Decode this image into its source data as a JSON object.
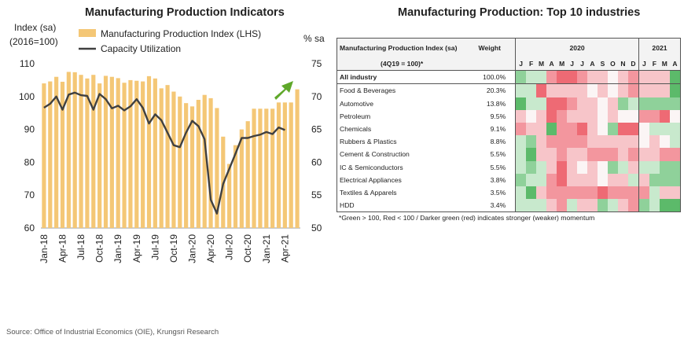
{
  "left_title": "Manufacturing Production Indicators",
  "right_title": "Manufacturing Production: Top 10 industries",
  "left_axis_label_line1": "Index (sa)",
  "left_axis_label_line2": "(2016=100)",
  "right_axis_label": "% sa",
  "source": "Source: Office of Industrial Economics (OIE), Krungsri Research",
  "chart_data": [
    {
      "type": "bar",
      "title": "Manufacturing Production Indicators",
      "ylabel": "Index (sa) (2016=100)",
      "y2label": "% sa",
      "ylim": [
        60,
        110
      ],
      "y2lim": [
        50,
        75
      ],
      "yticks": [
        60,
        70,
        80,
        90,
        100,
        110
      ],
      "y2ticks": [
        50,
        55,
        60,
        65,
        70,
        75
      ],
      "xtick_labels": [
        "Jan-18",
        "Apr-18",
        "Jul-18",
        "Oct-18",
        "Jan-19",
        "Apr-19",
        "Jul-19",
        "Oct-19",
        "Jan-20",
        "Apr-20",
        "Jul-20",
        "Oct-20",
        "Jan-21",
        "Apr-21"
      ],
      "xtick_index": [
        0,
        3,
        6,
        9,
        12,
        15,
        18,
        21,
        24,
        27,
        30,
        33,
        36,
        39
      ],
      "legend": [
        "Manufacturing Production Index (LHS)",
        "Capacity Utilization"
      ],
      "legend_position": "top-left",
      "colors": {
        "bars": "#f4c776",
        "line": "#404040",
        "arrow": "#5fa82a"
      },
      "series": [
        {
          "name": "Manufacturing Production Index (LHS)",
          "type": "bar",
          "values": [
            104.0,
            104.6,
            106.0,
            104.5,
            107.5,
            107.4,
            106.6,
            105.5,
            106.6,
            104.0,
            106.3,
            106.0,
            105.6,
            104.2,
            105.0,
            104.8,
            104.6,
            106.2,
            105.5,
            102.5,
            103.5,
            101.5,
            100.0,
            98.0,
            97.0,
            99.0,
            100.5,
            99.5,
            96.5,
            87.8,
            79.5,
            85.2,
            90.0,
            92.5,
            96.3,
            96.3,
            96.3,
            96.3,
            98.2,
            98.2,
            98.2,
            102.2
          ]
        },
        {
          "name": "Capacity Utilization",
          "type": "line",
          "axis": "right",
          "values": [
            68.3,
            68.9,
            70.0,
            68.0,
            70.3,
            70.6,
            70.2,
            70.1,
            68.0,
            70.4,
            69.6,
            68.2,
            68.6,
            67.9,
            68.5,
            69.6,
            68.3,
            65.9,
            67.3,
            66.4,
            64.5,
            62.6,
            62.3,
            64.5,
            66.3,
            65.5,
            63.5,
            54.3,
            52.2,
            56.7,
            59.0,
            61.3,
            63.7,
            63.7,
            64.0,
            64.2,
            64.6,
            64.3,
            65.3,
            64.9
          ]
        }
      ]
    },
    {
      "type": "heatmap",
      "title": "Manufacturing Production: Top 10 industries",
      "header_col1": "Manufacturing Production Index (sa)",
      "header_col1_sub": "(4Q19 = 100)*",
      "header_weight": "Weight",
      "years": [
        {
          "label": "2020",
          "span": 12
        },
        {
          "label": "2021",
          "span": 4
        }
      ],
      "months": [
        "J",
        "F",
        "M",
        "A",
        "M",
        "J",
        "J",
        "A",
        "S",
        "O",
        "N",
        "D",
        "J",
        "F",
        "M",
        "A"
      ],
      "rows": [
        {
          "name": "All industry",
          "weight": "100.0%",
          "bold": true,
          "cells": [
            2,
            1,
            1,
            -2,
            -3,
            -3,
            -2,
            -1,
            -1,
            0,
            -1,
            -2,
            -1,
            -1,
            -1,
            3
          ]
        },
        {
          "name": "Food & Beverages",
          "weight": "20.3%",
          "cells": [
            1,
            1,
            -3,
            -1,
            -1,
            -1,
            -1,
            0,
            -1,
            0,
            -1,
            -2,
            -1,
            -1,
            -1,
            3
          ]
        },
        {
          "name": "Automotive",
          "weight": "13.8%",
          "cells": [
            3,
            1,
            1,
            -3,
            -3,
            -2,
            -1,
            -1,
            0,
            -1,
            2,
            1,
            2,
            2,
            2,
            2
          ]
        },
        {
          "name": "Petroleum",
          "weight": "9.5%",
          "cells": [
            -1,
            0,
            -1,
            -3,
            -2,
            -1,
            -1,
            -1,
            0,
            -1,
            0,
            0,
            -2,
            -2,
            -3,
            0
          ]
        },
        {
          "name": "Chemicals",
          "weight": "9.1%",
          "cells": [
            -2,
            -1,
            -1,
            3,
            -2,
            -2,
            -3,
            -1,
            0,
            2,
            -3,
            -3,
            0,
            1,
            1,
            1
          ]
        },
        {
          "name": "Rubbers & Plastics",
          "weight": "8.8%",
          "cells": [
            1,
            2,
            -1,
            -2,
            -2,
            -2,
            -2,
            -1,
            -1,
            -1,
            -1,
            -1,
            0,
            -1,
            0,
            1
          ]
        },
        {
          "name": "Cement & Construction",
          "weight": "5.5%",
          "cells": [
            1,
            3,
            -1,
            -1,
            -2,
            -1,
            -1,
            -2,
            -2,
            -2,
            -1,
            -2,
            -1,
            -1,
            -2,
            -2
          ]
        },
        {
          "name": "IC & Semiconductors",
          "weight": "5.5%",
          "cells": [
            1,
            2,
            1,
            -1,
            -3,
            -1,
            0,
            -1,
            0,
            2,
            1,
            -1,
            1,
            1,
            2,
            2
          ]
        },
        {
          "name": "Electrical Appliances",
          "weight": "3.8%",
          "cells": [
            2,
            1,
            1,
            -2,
            -3,
            -1,
            -1,
            -1,
            0,
            -1,
            -1,
            1,
            -1,
            2,
            2,
            2
          ]
        },
        {
          "name": "Textiles & Apparels",
          "weight": "3.5%",
          "cells": [
            1,
            3,
            -1,
            -2,
            -2,
            -2,
            -2,
            -2,
            -3,
            -2,
            -2,
            -2,
            -2,
            1,
            -1,
            -1
          ]
        },
        {
          "name": "HDD",
          "weight": "3.4%",
          "cells": [
            1,
            1,
            1,
            -1,
            -2,
            1,
            -1,
            -1,
            2,
            1,
            -1,
            -2,
            2,
            1,
            3,
            3
          ]
        }
      ],
      "note": "*Green > 100, Red < 100 / Darker green (red) indicates stronger (weaker) momentum",
      "colors": {
        "green3": "#5cba6a",
        "green2": "#8fd19a",
        "green1": "#c8e9cd",
        "neutral": "#fbf5f5",
        "red1": "#f7c5c9",
        "red2": "#f3969e",
        "red3": "#ee6a74"
      }
    }
  ]
}
